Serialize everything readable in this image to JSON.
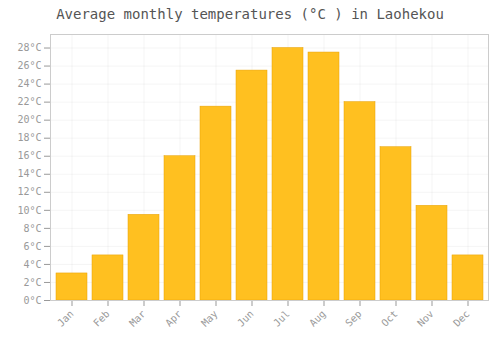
{
  "chart_data": {
    "type": "bar",
    "title": "Average monthly temperatures (°C ) in Laohekou",
    "categories": [
      "Jan",
      "Feb",
      "Mar",
      "Apr",
      "May",
      "Jun",
      "Jul",
      "Aug",
      "Sep",
      "Oct",
      "Nov",
      "Dec"
    ],
    "values": [
      3,
      5,
      9.5,
      16,
      21.5,
      25.5,
      28,
      27.5,
      22,
      17,
      10.5,
      5
    ],
    "color": "#FFC020",
    "ylim": [
      0,
      29.5
    ],
    "yticks": [
      {
        "value": 0,
        "label": "0°C"
      },
      {
        "value": 2,
        "label": "2°C"
      },
      {
        "value": 4,
        "label": "4°C"
      },
      {
        "value": 6,
        "label": "6°C"
      },
      {
        "value": 8,
        "label": "8°C"
      },
      {
        "value": 10,
        "label": "10°C"
      },
      {
        "value": 12,
        "label": "12°C"
      },
      {
        "value": 14,
        "label": "14°C"
      },
      {
        "value": 16,
        "label": "16°C"
      },
      {
        "value": 18,
        "label": "18°C"
      },
      {
        "value": 20,
        "label": "20°C"
      },
      {
        "value": 22,
        "label": "22°C"
      },
      {
        "value": 24,
        "label": "24°C"
      },
      {
        "value": 26,
        "label": "26°C"
      },
      {
        "value": 28,
        "label": "28°C"
      }
    ],
    "grid": true
  }
}
